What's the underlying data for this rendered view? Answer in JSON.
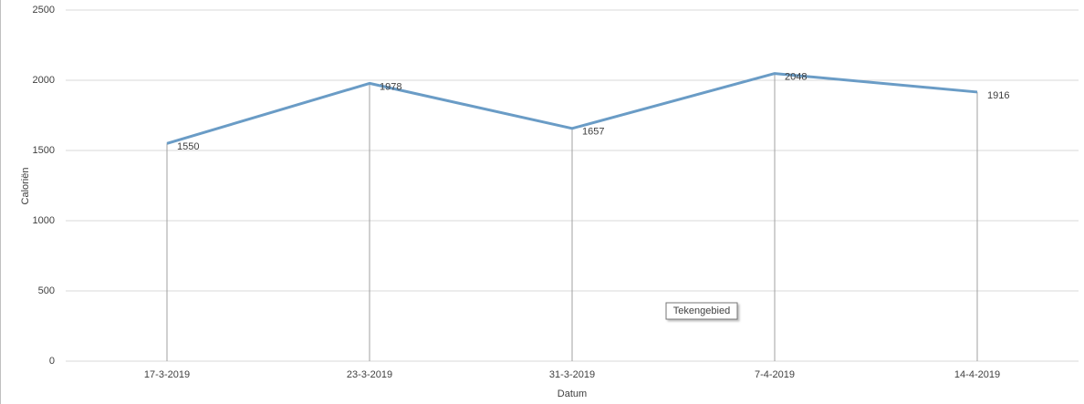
{
  "chart_data": {
    "type": "line",
    "x_label": "Datum",
    "y_label": "Caloriën",
    "categories": [
      "17-3-2019",
      "23-3-2019",
      "31-3-2019",
      "7-4-2019",
      "14-4-2019"
    ],
    "series": [
      {
        "color": "#6a9cc6",
        "values": [
          1550,
          1978,
          1657,
          2048,
          1916
        ]
      }
    ],
    "ylim": [
      0,
      2500
    ],
    "yticks": [
      0,
      500,
      1000,
      1500,
      2000,
      2500
    ],
    "grid": true,
    "drop_lines": true,
    "data_labels": true,
    "annotation": "Tekengebied"
  }
}
